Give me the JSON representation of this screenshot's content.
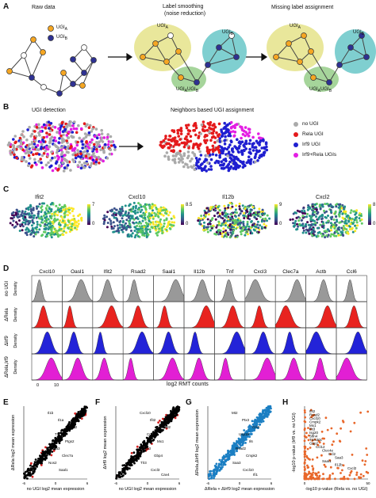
{
  "panels": {
    "A": "A",
    "B": "B",
    "C": "C",
    "D": "D",
    "E": "E",
    "F": "F",
    "G": "G",
    "H": "H"
  },
  "panelA": {
    "raw_title": "Raw data",
    "smooth_title": "Label smoothing",
    "smooth_subtitle": "(noise reduction)",
    "missing_title": "Missing label assignment",
    "legend_ugia": "UGI",
    "legend_ugia_sub": "A",
    "legend_ugib": "UGI",
    "legend_ugib_sub": "B",
    "blob_a": "UGI",
    "blob_a_sub": "A",
    "blob_b": "UGI",
    "blob_b_sub": "B",
    "blob_ab": "UGI",
    "blob_ab_sub1": "A",
    "blob_ab_mid": "UGI",
    "blob_ab_sub2": "B",
    "colors": {
      "orange": "#f5a623",
      "navy": "#2e3192",
      "yellow": "#e9e79b",
      "teal": "#7fcfd0",
      "green": "#a6d59b"
    }
  },
  "panelB": {
    "left_title": "UGI detection",
    "right_title": "Neighbors based UGI assignment",
    "legend": [
      {
        "label": "no UGI",
        "color": "#aaaaaa"
      },
      {
        "label": "Rela UGI",
        "color": "#e41a1c"
      },
      {
        "label": "Irf9 UGI",
        "color": "#1f1fd0"
      },
      {
        "label": "Irf9+Rela UGIs",
        "color": "#e31ee3"
      }
    ]
  },
  "panelC": {
    "maps": [
      {
        "gene": "Ifit2",
        "max": "7",
        "min": "0"
      },
      {
        "gene": "Cxcl10",
        "max": "8.5",
        "min": "0"
      },
      {
        "gene": "Il12b",
        "max": "9",
        "min": "0"
      },
      {
        "gene": "Cxcl2",
        "max": "8",
        "min": "0"
      }
    ]
  },
  "panelD": {
    "genes": [
      "Cxcl10",
      "Oasl1",
      "Ifit2",
      "Rsad2",
      "Saal1",
      "Il12b",
      "Tnf",
      "Cxcl3",
      "Clec7a",
      "Actb",
      "Ccl6"
    ],
    "rows": [
      {
        "label": "no UGI",
        "color": "#999999"
      },
      {
        "label": "ΔRela",
        "color": "#e8231f"
      },
      {
        "label": "ΔIrf9",
        "color": "#2323d8"
      },
      {
        "label": "ΔRela,Irf9",
        "color": "#e21fd4"
      }
    ],
    "ylabel": "Density",
    "xticks": [
      "0",
      "10"
    ],
    "xlabel": "log2 RMT counts"
  },
  "panelE": {
    "ylabel": "ΔRela log2 mean expression",
    "xlabel": "no UGI log2 mean expression",
    "ticks": [
      "-6",
      "0",
      "6"
    ],
    "genes": [
      "Il1b",
      "Il1a",
      "Cxcl2",
      "Tnf",
      "Ptgs2",
      "Saa3",
      "Clec7a",
      "Nos2",
      "Saal1"
    ]
  },
  "panelF": {
    "ylabel": "ΔIrf9 log2 mean expression",
    "xlabel": "no UGI log2 mean expression",
    "ticks": [
      "-6",
      "0",
      "6"
    ],
    "genes": [
      "Cxcl10",
      "Ifit2",
      "Rsad2",
      "Cmpk2",
      "Mx1",
      "Ptx3",
      "Gbp4",
      "Tlr3",
      "Cxcl3",
      "Cav4"
    ]
  },
  "panelG": {
    "ylabel": "ΔRela,ΔIrf9 log2 mean expression",
    "xlabel": "ΔRela + ΔIrf9 log2 mean expression",
    "ticks": [
      "-6",
      "0",
      "6"
    ],
    "genes": [
      "Mt2",
      "Ptx3",
      "Ccl3",
      "Usp18",
      "Il6",
      "Rsad2",
      "Cmpk2",
      "Saa3",
      "Cxcl10",
      "Ifi1"
    ]
  },
  "panelH": {
    "ylabel": "-log10 p-value (Irf9 vs. no UGI)",
    "xlabel": "-log10 p-value (Rela vs. no UGI)",
    "ticks": [
      "0",
      "50"
    ],
    "genes": [
      "Ifit2",
      "Rsad2",
      "Cxcl10",
      "Cmpk2",
      "Mx1",
      "Ifit3",
      "Isg20",
      "Slfn4",
      "Trim30c",
      "Gbp2",
      "Ccl12",
      "Clec4e",
      "Ccl2",
      "Saa3",
      "Saal1",
      "Il12b",
      "Cxcl2"
    ]
  }
}
